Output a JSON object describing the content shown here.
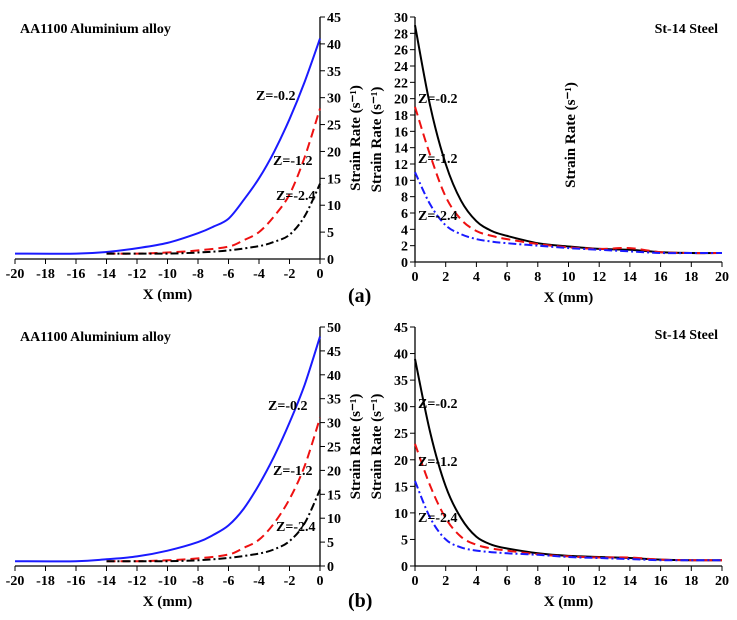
{
  "panel_labels": [
    "(a)",
    "(b)"
  ],
  "colors": {
    "z_0_2": "#1a1aff",
    "z_1_2": "#ee1111",
    "z_2_4": "#000000",
    "steel_z_0_2": "#000000",
    "steel_z_2_4": "#1a1aff",
    "axis": "#000000"
  },
  "chart_data": [
    {
      "type": "line",
      "panel": "(a)",
      "title": "AA1100 Aluminium alloy",
      "xlabel": "X (mm)",
      "ylabel": "Strain Rate (s⁻¹)",
      "xlim": [
        -20,
        0
      ],
      "ylim": [
        0,
        45
      ],
      "x_ticks": [
        -20,
        -18,
        -16,
        -14,
        -12,
        -10,
        -8,
        -6,
        -4,
        -2,
        0
      ],
      "y_ticks": [
        0,
        5,
        10,
        15,
        20,
        25,
        30,
        35,
        40,
        45
      ],
      "y_axis_side": "right",
      "series": [
        {
          "name": "Z=-0.2",
          "style": "solid",
          "color": "#1a1aff",
          "x": [
            -20,
            -16,
            -14,
            -12,
            -10,
            -8,
            -7,
            -6,
            -5,
            -4,
            -3,
            -2,
            -1,
            0
          ],
          "y": [
            1,
            1,
            1.3,
            2,
            3,
            4.8,
            6,
            7.5,
            11,
            15,
            20,
            26,
            33,
            41
          ]
        },
        {
          "name": "Z=-1.2",
          "style": "dashed",
          "color": "#ee1111",
          "x": [
            -14,
            -12,
            -10,
            -8,
            -6,
            -5,
            -4,
            -3,
            -2,
            -1,
            0
          ],
          "y": [
            1,
            1,
            1.2,
            1.6,
            2.3,
            3.5,
            5,
            8,
            12,
            19,
            28
          ]
        },
        {
          "name": "Z=-2.4",
          "style": "dashdot",
          "color": "#000000",
          "x": [
            -14,
            -12,
            -10,
            -8,
            -6,
            -4,
            -3,
            -2,
            -1,
            0
          ],
          "y": [
            1,
            1,
            1,
            1.2,
            1.6,
            2.4,
            3.2,
            4.5,
            8,
            14
          ]
        }
      ],
      "annotations": [
        "Z=-0.2",
        "Z=-1.2",
        "Z=-2.4"
      ]
    },
    {
      "type": "line",
      "panel": "(a)",
      "title": "St-14 Steel",
      "xlabel": "X (mm)",
      "ylabel": "Strain Rate (s⁻¹)",
      "xlim": [
        0,
        20
      ],
      "ylim": [
        0,
        30
      ],
      "x_ticks": [
        0,
        2,
        4,
        6,
        8,
        10,
        12,
        14,
        16,
        18,
        20
      ],
      "y_ticks": [
        0,
        2,
        4,
        6,
        8,
        10,
        12,
        14,
        16,
        18,
        20,
        22,
        24,
        26,
        28,
        30
      ],
      "y_axis_side": "left",
      "series": [
        {
          "name": "Z=-0.2",
          "style": "solid",
          "color": "#000000",
          "x": [
            0,
            1,
            2,
            3,
            4,
            5,
            6,
            8,
            10,
            12,
            14,
            16,
            18,
            20
          ],
          "y": [
            29,
            19,
            12,
            7.5,
            5,
            3.8,
            3.2,
            2.3,
            1.9,
            1.6,
            1.5,
            1.2,
            1.1,
            1.1
          ]
        },
        {
          "name": "Z=-1.2",
          "style": "dashed",
          "color": "#ee1111",
          "x": [
            0,
            1,
            2,
            3,
            4,
            5,
            6,
            8,
            10,
            12,
            14,
            16,
            18,
            20
          ],
          "y": [
            19,
            13,
            8,
            5.2,
            3.8,
            3.2,
            2.8,
            2.2,
            1.8,
            1.6,
            1.7,
            1.2,
            1.1,
            1.1
          ]
        },
        {
          "name": "Z=-2.4",
          "style": "dashdot",
          "color": "#1a1aff",
          "x": [
            0,
            1,
            2,
            3,
            4,
            5,
            6,
            8,
            10,
            12,
            14,
            16,
            18,
            20
          ],
          "y": [
            11,
            7,
            4.5,
            3.4,
            2.8,
            2.5,
            2.3,
            2,
            1.7,
            1.5,
            1.3,
            1.1,
            1.1,
            1.1
          ]
        }
      ],
      "annotations": [
        "Z=-0.2",
        "Z=-1.2",
        "Z=-2.4",
        "Strain Rate (s⁻¹)"
      ]
    },
    {
      "type": "line",
      "panel": "(b)",
      "title": "AA1100 Aluminium alloy",
      "xlabel": "X (mm)",
      "ylabel": "Strain Rate (s⁻¹)",
      "xlim": [
        -20,
        0
      ],
      "ylim": [
        0,
        50
      ],
      "x_ticks": [
        -20,
        -18,
        -16,
        -14,
        -12,
        -10,
        -8,
        -6,
        -4,
        -2,
        0
      ],
      "y_ticks": [
        0,
        5,
        10,
        15,
        20,
        25,
        30,
        35,
        40,
        45,
        50
      ],
      "y_axis_side": "right",
      "series": [
        {
          "name": "Z=-0.2",
          "style": "solid",
          "color": "#1a1aff",
          "x": [
            -20,
            -16,
            -14,
            -12,
            -10,
            -8,
            -7,
            -6,
            -5,
            -4,
            -3,
            -2,
            -1,
            0
          ],
          "y": [
            1,
            1,
            1.4,
            2,
            3.2,
            5,
            6.5,
            8.5,
            12,
            17,
            23,
            30,
            38,
            48
          ]
        },
        {
          "name": "Z=-1.2",
          "style": "dashed",
          "color": "#ee1111",
          "x": [
            -14,
            -12,
            -10,
            -8,
            -6,
            -5,
            -4,
            -3,
            -2,
            -1,
            0
          ],
          "y": [
            1,
            1,
            1.2,
            1.6,
            2.4,
            3.8,
            5.5,
            9,
            14,
            21,
            31
          ]
        },
        {
          "name": "Z=-2.4",
          "style": "dashdot",
          "color": "#000000",
          "x": [
            -14,
            -12,
            -10,
            -8,
            -6,
            -4,
            -3,
            -2,
            -1,
            0
          ],
          "y": [
            1,
            1,
            1,
            1.2,
            1.7,
            2.6,
            3.5,
            5.2,
            9,
            16
          ]
        }
      ],
      "annotations": [
        "Z=-0.2",
        "Z=-1.2",
        "Z=-2.4"
      ]
    },
    {
      "type": "line",
      "panel": "(b)",
      "title": "St-14 Steel",
      "xlabel": "X (mm)",
      "ylabel": "Strain Rate (s⁻¹)",
      "xlim": [
        0,
        20
      ],
      "ylim": [
        0,
        45
      ],
      "x_ticks": [
        0,
        2,
        4,
        6,
        8,
        10,
        12,
        14,
        16,
        18,
        20
      ],
      "y_ticks": [
        0,
        5,
        10,
        15,
        20,
        25,
        30,
        35,
        40,
        45
      ],
      "y_axis_side": "left",
      "series": [
        {
          "name": "Z=-0.2",
          "style": "solid",
          "color": "#000000",
          "x": [
            0,
            1,
            2,
            3,
            4,
            5,
            6,
            8,
            10,
            12,
            14,
            16,
            18,
            20
          ],
          "y": [
            39,
            25,
            15,
            9,
            5.5,
            4,
            3.3,
            2.4,
            1.9,
            1.7,
            1.5,
            1.2,
            1.1,
            1.1
          ]
        },
        {
          "name": "Z=-1.2",
          "style": "dashed",
          "color": "#ee1111",
          "x": [
            0,
            1,
            2,
            3,
            4,
            5,
            6,
            8,
            10,
            12,
            14,
            16,
            18,
            20
          ],
          "y": [
            23,
            15,
            9,
            5.5,
            4,
            3.3,
            2.9,
            2.2,
            1.8,
            1.6,
            1.6,
            1.2,
            1.1,
            1.1
          ]
        },
        {
          "name": "Z=-2.4",
          "style": "dashdot",
          "color": "#1a1aff",
          "x": [
            0,
            1,
            2,
            3,
            4,
            5,
            6,
            8,
            10,
            12,
            14,
            16,
            18,
            20
          ],
          "y": [
            16,
            9,
            5,
            3.5,
            2.9,
            2.6,
            2.4,
            2.1,
            1.7,
            1.5,
            1.3,
            1.1,
            1.1,
            1.1
          ]
        }
      ],
      "annotations": [
        "Z=-0.2",
        "Z=-1.2",
        "Z=-2.4"
      ]
    }
  ]
}
